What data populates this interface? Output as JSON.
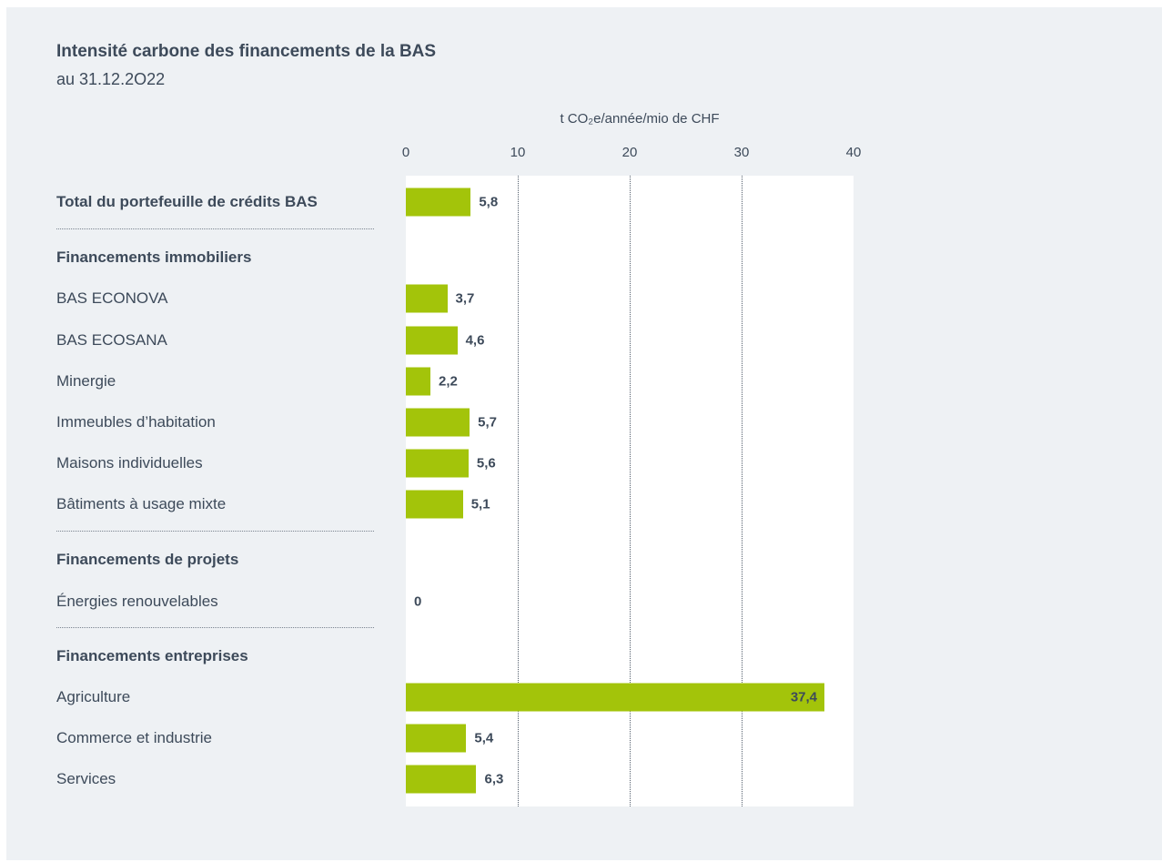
{
  "title": "Intensité carbone des financements de la BAS",
  "subtitle": "au 31.12.2O22",
  "chart_data": {
    "type": "bar",
    "orientation": "horizontal",
    "unit_label": "t CO₂e/année/mio de CHF",
    "xlim": [
      0,
      40
    ],
    "x_ticks": [
      "0",
      "10",
      "20",
      "30",
      "40"
    ],
    "grid": true,
    "bar_color": "#a3c40a",
    "rows": [
      {
        "label": "Total du portefeuille de crédits BAS",
        "bold": true,
        "value": 5.8,
        "value_label": "5,8"
      },
      {
        "label": "Financements immobiliers",
        "bold": true,
        "header": true
      },
      {
        "label": "BAS ECONOVA",
        "value": 3.7,
        "value_label": "3,7"
      },
      {
        "label": "BAS ECOSANA",
        "value": 4.6,
        "value_label": "4,6"
      },
      {
        "label": "Minergie",
        "value": 2.2,
        "value_label": "2,2"
      },
      {
        "label": "Immeubles d’habitation",
        "value": 5.7,
        "value_label": "5,7"
      },
      {
        "label": "Maisons individuelles",
        "value": 5.6,
        "value_label": "5,6"
      },
      {
        "label": "Bâtiments à usage mixte",
        "value": 5.1,
        "value_label": "5,1"
      },
      {
        "label": "Financements de projets",
        "bold": true,
        "header": true
      },
      {
        "label": "Énergies renouvelables",
        "value": 0,
        "value_label": "0"
      },
      {
        "label": "Financements entreprises",
        "bold": true,
        "header": true
      },
      {
        "label": "Agriculture",
        "value": 37.4,
        "value_label": "37,4"
      },
      {
        "label": "Commerce et industrie",
        "value": 5.4,
        "value_label": "5,4"
      },
      {
        "label": "Services",
        "value": 6.3,
        "value_label": "6,3"
      }
    ]
  }
}
